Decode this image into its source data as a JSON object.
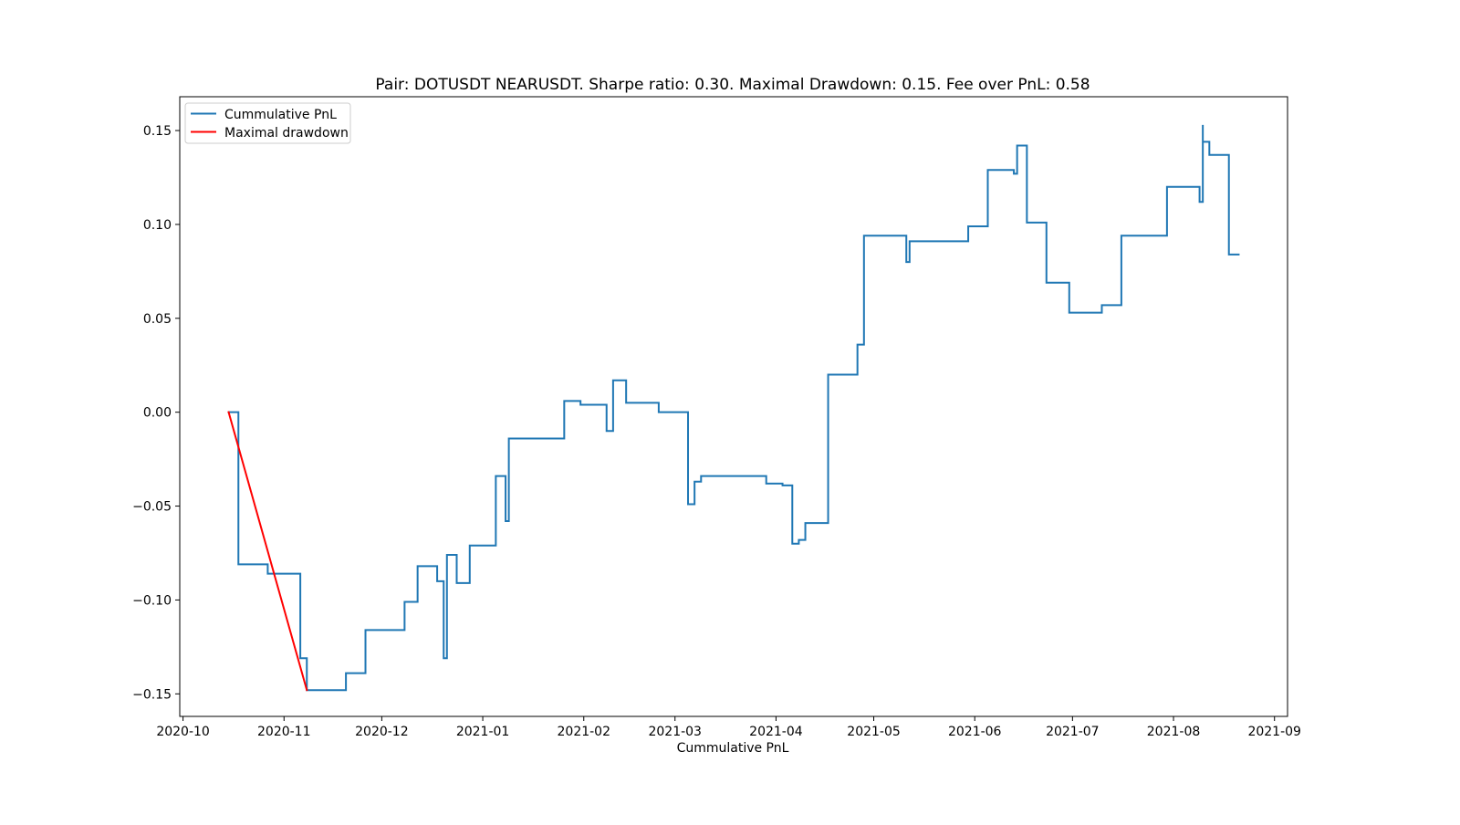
{
  "chart_data": {
    "type": "line",
    "title": "Pair: DOTUSDT NEARUSDT. Sharpe ratio: 0.30. Maximal Drawdown: 0.15. Fee over PnL: 0.58",
    "xlabel": "Cummulative PnL",
    "ylabel": "",
    "x_scale": "date",
    "xlim": [
      "2020-09-30",
      "2021-09-05"
    ],
    "ylim": [
      -0.162,
      0.168
    ],
    "x_ticks": [
      "2020-10-01",
      "2020-11-01",
      "2020-12-01",
      "2021-01-01",
      "2021-02-01",
      "2021-03-01",
      "2021-04-01",
      "2021-05-01",
      "2021-06-01",
      "2021-07-01",
      "2021-08-01",
      "2021-09-01"
    ],
    "x_tick_labels": [
      "2020-10",
      "2020-11",
      "2020-12",
      "2021-01",
      "2021-02",
      "2021-03",
      "2021-04",
      "2021-05",
      "2021-06",
      "2021-07",
      "2021-08",
      "2021-09"
    ],
    "y_ticks": [
      -0.15,
      -0.1,
      -0.05,
      0.0,
      0.05,
      0.1,
      0.15
    ],
    "y_tick_labels": [
      "−0.15",
      "−0.10",
      "−0.05",
      "0.00",
      "0.05",
      "0.10",
      "0.15"
    ],
    "grid": false,
    "legend_position": "upper-left",
    "legend": [
      "Cummulative PnL",
      "Maximal drawdown"
    ],
    "series": [
      {
        "name": "Cummulative PnL",
        "color": "#1f77b4",
        "style": "step",
        "points": [
          [
            "2020-10-15",
            0.0
          ],
          [
            "2020-10-18",
            0.0
          ],
          [
            "2020-10-18",
            -0.081
          ],
          [
            "2020-10-27",
            -0.081
          ],
          [
            "2020-10-27",
            -0.086
          ],
          [
            "2020-11-06",
            -0.086
          ],
          [
            "2020-11-06",
            -0.131
          ],
          [
            "2020-11-08",
            -0.131
          ],
          [
            "2020-11-08",
            -0.148
          ],
          [
            "2020-11-20",
            -0.148
          ],
          [
            "2020-11-20",
            -0.139
          ],
          [
            "2020-11-26",
            -0.139
          ],
          [
            "2020-11-26",
            -0.116
          ],
          [
            "2020-12-08",
            -0.116
          ],
          [
            "2020-12-08",
            -0.101
          ],
          [
            "2020-12-12",
            -0.101
          ],
          [
            "2020-12-12",
            -0.082
          ],
          [
            "2020-12-18",
            -0.082
          ],
          [
            "2020-12-18",
            -0.09
          ],
          [
            "2020-12-20",
            -0.09
          ],
          [
            "2020-12-20",
            -0.131
          ],
          [
            "2020-12-21",
            -0.131
          ],
          [
            "2020-12-21",
            -0.076
          ],
          [
            "2020-12-24",
            -0.076
          ],
          [
            "2020-12-24",
            -0.091
          ],
          [
            "2020-12-28",
            -0.091
          ],
          [
            "2020-12-28",
            -0.071
          ],
          [
            "2021-01-05",
            -0.071
          ],
          [
            "2021-01-05",
            -0.034
          ],
          [
            "2021-01-08",
            -0.034
          ],
          [
            "2021-01-08",
            -0.058
          ],
          [
            "2021-01-09",
            -0.058
          ],
          [
            "2021-01-09",
            -0.014
          ],
          [
            "2021-01-26",
            -0.014
          ],
          [
            "2021-01-26",
            0.006
          ],
          [
            "2021-01-31",
            0.006
          ],
          [
            "2021-01-31",
            0.004
          ],
          [
            "2021-02-08",
            0.004
          ],
          [
            "2021-02-08",
            -0.01
          ],
          [
            "2021-02-10",
            -0.01
          ],
          [
            "2021-02-10",
            0.017
          ],
          [
            "2021-02-14",
            0.017
          ],
          [
            "2021-02-14",
            0.005
          ],
          [
            "2021-02-24",
            0.005
          ],
          [
            "2021-02-24",
            0.0
          ],
          [
            "2021-03-05",
            0.0
          ],
          [
            "2021-03-05",
            -0.049
          ],
          [
            "2021-03-07",
            -0.049
          ],
          [
            "2021-03-07",
            -0.037
          ],
          [
            "2021-03-09",
            -0.037
          ],
          [
            "2021-03-09",
            -0.034
          ],
          [
            "2021-03-29",
            -0.034
          ],
          [
            "2021-03-29",
            -0.038
          ],
          [
            "2021-04-03",
            -0.038
          ],
          [
            "2021-04-03",
            -0.039
          ],
          [
            "2021-04-06",
            -0.039
          ],
          [
            "2021-04-06",
            -0.07
          ],
          [
            "2021-04-08",
            -0.07
          ],
          [
            "2021-04-08",
            -0.068
          ],
          [
            "2021-04-10",
            -0.068
          ],
          [
            "2021-04-10",
            -0.059
          ],
          [
            "2021-04-17",
            -0.059
          ],
          [
            "2021-04-17",
            0.02
          ],
          [
            "2021-04-26",
            0.02
          ],
          [
            "2021-04-26",
            0.036
          ],
          [
            "2021-04-28",
            0.036
          ],
          [
            "2021-04-28",
            0.094
          ],
          [
            "2021-05-11",
            0.094
          ],
          [
            "2021-05-11",
            0.08
          ],
          [
            "2021-05-12",
            0.08
          ],
          [
            "2021-05-12",
            0.091
          ],
          [
            "2021-05-30",
            0.091
          ],
          [
            "2021-05-30",
            0.099
          ],
          [
            "2021-06-05",
            0.099
          ],
          [
            "2021-06-05",
            0.129
          ],
          [
            "2021-06-13",
            0.129
          ],
          [
            "2021-06-13",
            0.127
          ],
          [
            "2021-06-14",
            0.127
          ],
          [
            "2021-06-14",
            0.142
          ],
          [
            "2021-06-17",
            0.142
          ],
          [
            "2021-06-17",
            0.101
          ],
          [
            "2021-06-23",
            0.101
          ],
          [
            "2021-06-23",
            0.069
          ],
          [
            "2021-06-30",
            0.069
          ],
          [
            "2021-06-30",
            0.053
          ],
          [
            "2021-07-10",
            0.053
          ],
          [
            "2021-07-10",
            0.057
          ],
          [
            "2021-07-16",
            0.057
          ],
          [
            "2021-07-16",
            0.094
          ],
          [
            "2021-07-30",
            0.094
          ],
          [
            "2021-07-30",
            0.12
          ],
          [
            "2021-08-09",
            0.12
          ],
          [
            "2021-08-09",
            0.112
          ],
          [
            "2021-08-10",
            0.112
          ],
          [
            "2021-08-10",
            0.153
          ],
          [
            "2021-08-10",
            0.144
          ],
          [
            "2021-08-12",
            0.144
          ],
          [
            "2021-08-12",
            0.137
          ],
          [
            "2021-08-18",
            0.137
          ],
          [
            "2021-08-18",
            0.084
          ],
          [
            "2021-08-21",
            0.084
          ]
        ]
      },
      {
        "name": "Maximal drawdown",
        "color": "#ff0000",
        "style": "line",
        "points": [
          [
            "2020-10-15",
            0.0
          ],
          [
            "2020-11-08",
            -0.148
          ]
        ]
      }
    ]
  }
}
